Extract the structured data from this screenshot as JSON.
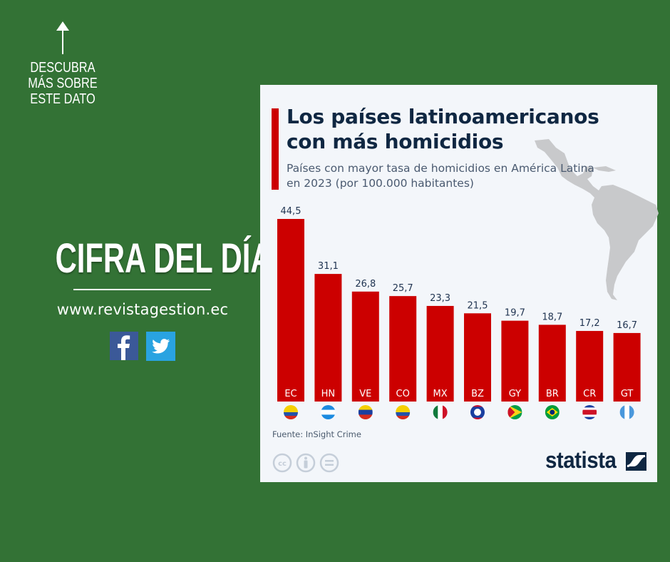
{
  "left_panel": {
    "cta_text": "DESCUBRA MÁS SOBRE ESTE DATO",
    "cta_icon": "arrow-up-icon",
    "headline": "CIFRA DEL DÍA",
    "website": "www.revistagestion.ec",
    "social": [
      "facebook-icon",
      "twitter-icon"
    ]
  },
  "card": {
    "brand": "statista",
    "source": "Fuente: InSight Crime",
    "license_icons": [
      "cc-icon",
      "attribution-icon",
      "no-derivatives-icon"
    ]
  },
  "colors": {
    "background": "#337235",
    "bar": "#cc0000",
    "title": "#0f2742",
    "card": "#f3f6fa"
  },
  "chart_data": {
    "type": "bar",
    "title": "Los países latinoamericanos con más homicidios",
    "subtitle": "Países con mayor tasa de homicidios en América Latina en 2023 (por 100.000 habitantes)",
    "xlabel": "",
    "ylabel": "",
    "ylim": [
      0,
      44.5
    ],
    "grid": false,
    "categories": [
      "EC",
      "HN",
      "VE",
      "CO",
      "MX",
      "BZ",
      "GY",
      "BR",
      "CR",
      "GT"
    ],
    "values": [
      44.5,
      31.1,
      26.8,
      25.7,
      23.3,
      21.5,
      19.7,
      18.7,
      17.2,
      16.7
    ],
    "value_labels": [
      "44,5",
      "31,1",
      "26,8",
      "25,7",
      "23,3",
      "21,5",
      "19,7",
      "18,7",
      "17,2",
      "16,7"
    ],
    "flag_icons": [
      "ecuador-flag-icon",
      "honduras-flag-icon",
      "venezuela-flag-icon",
      "colombia-flag-icon",
      "mexico-flag-icon",
      "belize-flag-icon",
      "guyana-flag-icon",
      "brazil-flag-icon",
      "costa-rica-flag-icon",
      "guatemala-flag-icon"
    ]
  }
}
